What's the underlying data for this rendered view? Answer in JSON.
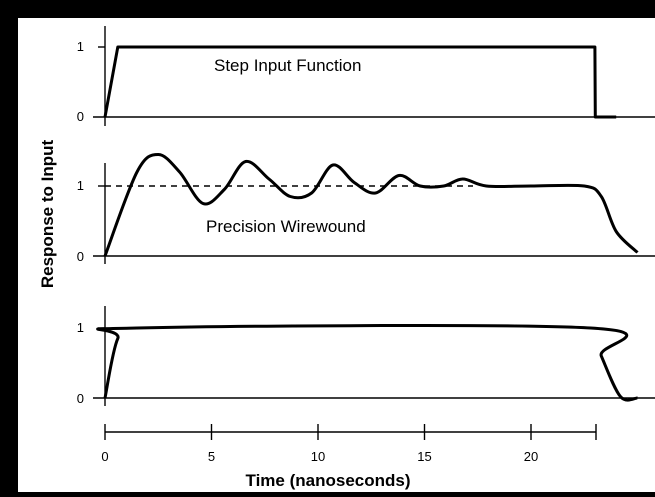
{
  "chart_data": [
    {
      "type": "line",
      "title": "",
      "annotation": "Step Input Function",
      "series": [
        {
          "x": [
            0,
            0.6,
            0.9,
            23.0,
            23.02,
            24.0
          ],
          "y": [
            0,
            1.0,
            1.0,
            1.0,
            0,
            0
          ]
        }
      ],
      "xlim": [
        0,
        25
      ],
      "ylim": [
        0,
        1
      ],
      "y_ticks": [
        "0",
        "1"
      ]
    },
    {
      "type": "line",
      "title": "",
      "annotation": "Precision Wirewound",
      "reference_line": 1,
      "series": [
        {
          "x": [
            0,
            1.5,
            2.5,
            3.5,
            4.6,
            5.6,
            6.6,
            7.7,
            8.7,
            9.7,
            10.7,
            11.7,
            12.7,
            13.8,
            14.8,
            15.9,
            16.8,
            17.9,
            20,
            22.5,
            23.3,
            24,
            25
          ],
          "y": [
            0,
            1.2,
            1.45,
            1.2,
            0.75,
            0.95,
            1.35,
            1.1,
            0.85,
            0.9,
            1.3,
            1.05,
            0.9,
            1.15,
            1.0,
            1.0,
            1.1,
            1.0,
            1.0,
            1.0,
            0.85,
            0.35,
            0.05
          ]
        }
      ],
      "xlim": [
        0,
        25
      ],
      "ylim": [
        0,
        1.5
      ],
      "y_ticks": [
        "0",
        "1"
      ]
    },
    {
      "type": "line",
      "title": "",
      "series": [
        {
          "x": [
            0,
            0.6,
            1.5,
            22.8,
            23.3,
            24.2,
            25
          ],
          "y": [
            0,
            0.85,
            1.0,
            1.0,
            0.6,
            0.02,
            0
          ]
        }
      ],
      "xlim": [
        0,
        25
      ],
      "ylim": [
        0,
        1
      ],
      "y_ticks": [
        "0",
        "1"
      ]
    }
  ],
  "axes": {
    "xlabel": "Time (nanoseconds)",
    "ylabel": "Response to Input",
    "x_ticks": [
      "0",
      "5",
      "10",
      "15",
      "20"
    ],
    "x_tick_values": [
      0,
      5,
      10,
      15,
      20
    ]
  }
}
